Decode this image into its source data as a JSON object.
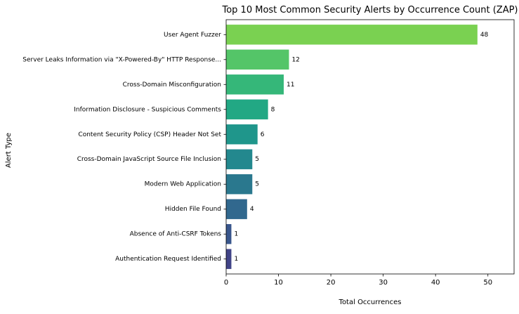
{
  "chart_data": {
    "type": "bar",
    "orientation": "horizontal",
    "title": "Top 10 Most Common Security Alerts by Occurrence Count (ZAP)",
    "xlabel": "Total Occurrences",
    "ylabel": "Alert Type",
    "xlim": [
      0,
      55
    ],
    "xticks": [
      0,
      10,
      20,
      30,
      40,
      50
    ],
    "grid": false,
    "categories": [
      "User Agent Fuzzer",
      "Server Leaks Information via \"X-Powered-By\" HTTP Response...",
      "Cross-Domain Misconfiguration",
      "Information Disclosure - Suspicious Comments",
      "Content Security Policy (CSP) Header Not Set",
      "Cross-Domain JavaScript Source File Inclusion",
      "Modern Web Application",
      "Hidden File Found",
      "Absence of Anti-CSRF Tokens",
      "Authentication Request Identified"
    ],
    "values": [
      48,
      12,
      11,
      8,
      6,
      5,
      5,
      4,
      1,
      1
    ],
    "colors": [
      "#7ad151",
      "#54c568",
      "#35b779",
      "#22a884",
      "#1f968b",
      "#23888e",
      "#2a788e",
      "#31688e",
      "#39568c",
      "#414487"
    ]
  }
}
